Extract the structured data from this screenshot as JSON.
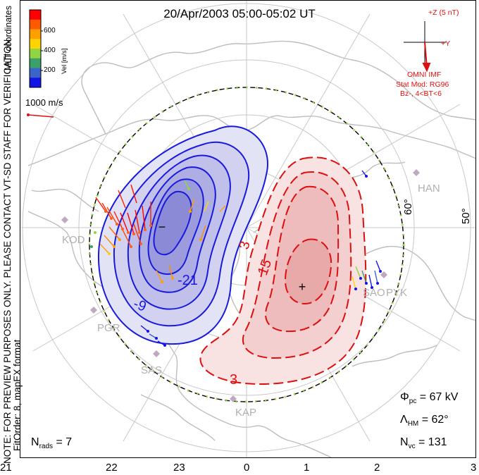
{
  "title": "20/Apr/2003 05:00-05:02 UT",
  "note_vertical": "NOTE: FOR PREVIEW PURPOSES ONLY. PLEASE CONTACT VT-SD STAFF FOR VERIFICATION.",
  "fit_vertical": "FitOrder: 8, mapEX format",
  "coords_vertical": "MLT coordinates",
  "colorbar": {
    "axis_label": "Vel [m/s]",
    "ticks": [
      "600",
      "400",
      "200"
    ],
    "colors": [
      "#ff0000",
      "#ff5a00",
      "#ffa000",
      "#ffd400",
      "#8fd642",
      "#3da06a",
      "#3a64c8",
      "#1414e6"
    ]
  },
  "reference_vector": "1000 m/s",
  "imf": {
    "z_label": "+Z (5 nT)",
    "y_label": "+Y",
    "source": "OMNI IMF",
    "model": "Stat Mod: RG96",
    "condition": "Bz-, 4<BT<6"
  },
  "grid_labels": {
    "lat60": "60°",
    "lat50": "50°"
  },
  "stations": [
    "KOD",
    "PGR",
    "SAS",
    "KAP",
    "HAN",
    "SAO",
    "PYK"
  ],
  "contour_labels": [
    "-21",
    "-9",
    "3",
    "15",
    "3"
  ],
  "markers": {
    "minus": "−",
    "plus": "+"
  },
  "stats": {
    "phi_pc_label": "Φ",
    "phi_pc_sub": "pc",
    "phi_pc_value": " = 67 kV",
    "lambda_hm_label": "Λ",
    "lambda_hm_sub": "HM",
    "lambda_hm_value": " = 62°",
    "n_rads_label": "N",
    "n_rads_sub": "rads",
    "n_rads_value": " = 7",
    "n_vc_label": "N",
    "n_vc_sub": "vc",
    "n_vc_value": " = 131"
  },
  "mlt_axis": [
    "21",
    "22",
    "23",
    "0",
    "1",
    "2",
    "3"
  ],
  "colors": {
    "negative_cell": "#1a1adc",
    "positive_cell": "#dc1010",
    "hmb": "#000000",
    "hmb_dots": "#9ad24a"
  }
}
